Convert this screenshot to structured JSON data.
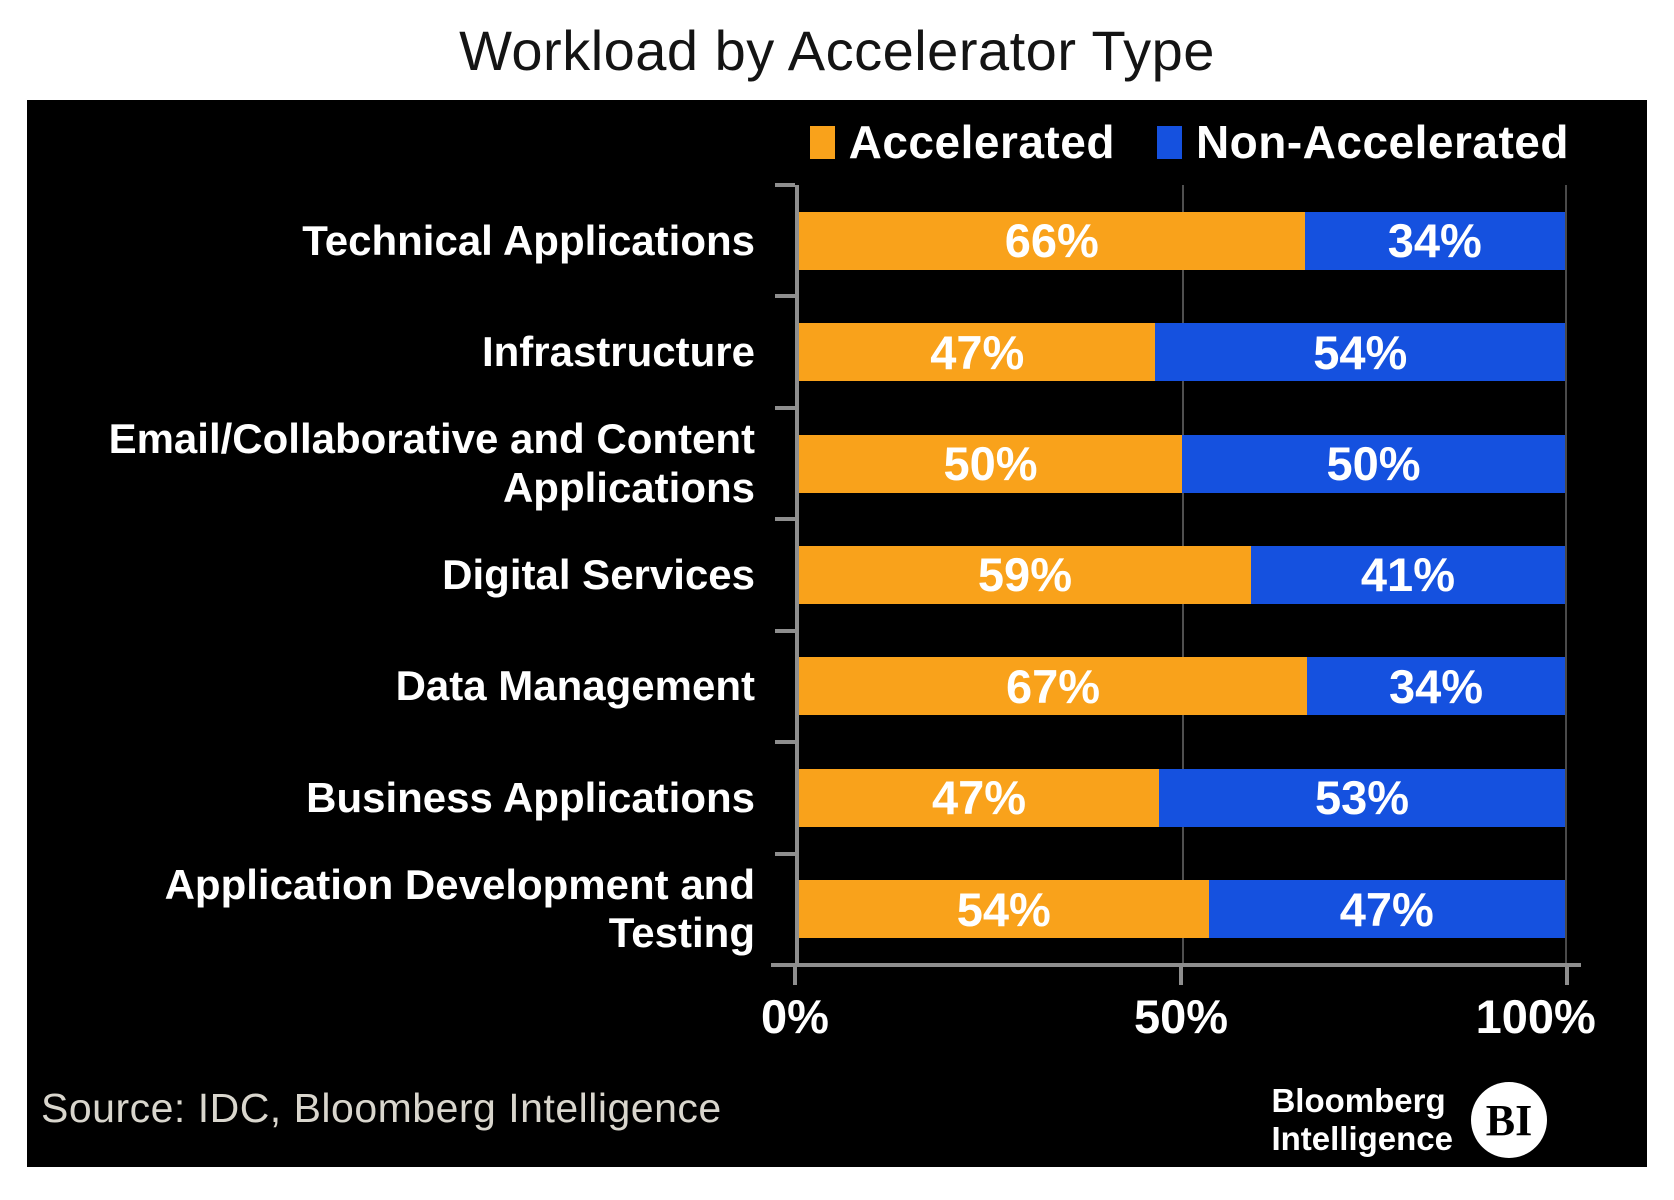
{
  "title": "Workload by Accelerator Type",
  "legend": [
    {
      "label": "Accelerated",
      "color": "#F9A21B"
    },
    {
      "label": "Non-Accelerated",
      "color": "#1551DF"
    }
  ],
  "chart_data": {
    "type": "bar",
    "orientation": "horizontal",
    "stacked": true,
    "title": "Workload by Accelerator Type",
    "categories": [
      "Technical Applications",
      "Infrastructure",
      "Email/Collaborative and Content Applications",
      "Digital Services",
      "Data Management",
      "Business Applications",
      "Application Development and Testing"
    ],
    "series": [
      {
        "name": "Accelerated",
        "color": "#F9A21B",
        "values": [
          66,
          47,
          50,
          59,
          67,
          47,
          54
        ]
      },
      {
        "name": "Non-Accelerated",
        "color": "#1551DF",
        "values": [
          34,
          54,
          50,
          41,
          34,
          53,
          47
        ]
      }
    ],
    "value_suffix": "%",
    "xlabel": "",
    "ylabel": "",
    "xlim": [
      0,
      100
    ],
    "x_ticks": [
      "0%",
      "50%",
      "100%"
    ],
    "grid": "vertical gridline at 50% and 100%",
    "legend_position": "top-right",
    "background": "#000000"
  },
  "footer": {
    "source": "Source: IDC, Bloomberg Intelligence",
    "brand_line1": "Bloomberg",
    "brand_line2": "Intelligence",
    "brand_badge": "BI"
  }
}
